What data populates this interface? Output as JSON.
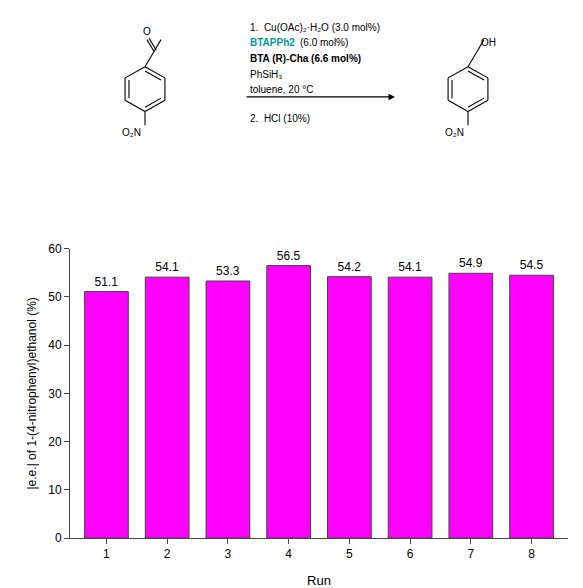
{
  "chart_data": {
    "type": "bar",
    "x": [
      1,
      2,
      3,
      4,
      5,
      6,
      7,
      8
    ],
    "values": [
      51.1,
      54.1,
      53.3,
      56.5,
      54.2,
      54.1,
      54.9,
      54.5
    ],
    "color": "#FF00FF",
    "xlabel": "Run",
    "ylabel": "|e.e.| of 1-(4-nitrophenyl)ethanol (%)",
    "xlim": [
      0.4,
      8.6
    ],
    "xticks": [
      1,
      2,
      3,
      4,
      5,
      6,
      7,
      8
    ],
    "ylim": [
      0,
      60
    ],
    "yticks": [
      0,
      10,
      20,
      30,
      40,
      50,
      60
    ],
    "grid": false,
    "data_labels": true,
    "annotations": [
      {
        "text": "1.  Cu(OAc)₂·H₂O (3.0 mol%)"
      },
      {
        "text": "BTAPPh2",
        "color": "#009999"
      },
      {
        "text": "(6.0 mol%)"
      },
      {
        "text": "BTA (R)-Cha (6.6 mol%)"
      },
      {
        "text": "PhSiH₃"
      },
      {
        "text": "toluene, 20 °C"
      },
      {
        "text": "2.  HCl (10%)"
      },
      {
        "text": "O"
      },
      {
        "text": "O₂N"
      },
      {
        "text": "OH"
      },
      {
        "text": "O₂N"
      }
    ]
  }
}
